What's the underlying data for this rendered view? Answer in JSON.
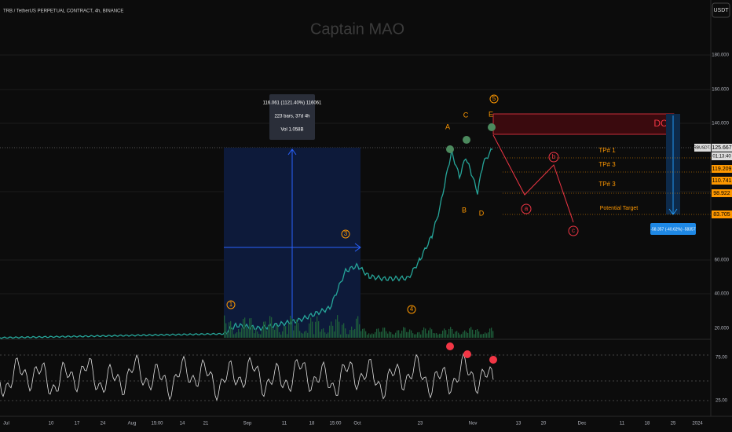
{
  "header": {
    "symbol": "TRB / TetherUS PERPETUAL CONTRACT, 4h, BINANCE",
    "watermark": "Captain MAO",
    "currency": "USDT"
  },
  "price_axis": {
    "labels": [
      "180.000",
      "160.000",
      "140.000",
      "60.000",
      "40.000",
      "20.000"
    ],
    "rsi_labels": [
      "75.00",
      "25.00"
    ]
  },
  "price_tags": {
    "symbol": "TRBUSDT.P",
    "last": "125.667",
    "countdown": "01:13:40",
    "levels": [
      "119.209",
      "110.741",
      "98.922",
      "83.705"
    ]
  },
  "measure": {
    "lines": [
      "116.061 (1121.40%) 116061",
      "223 bars, 37d 4h",
      "Vol 1.058B"
    ],
    "short": "-58.357 (-40.62%) -58357"
  },
  "waves": {
    "impulse": [
      "1",
      "3",
      "4",
      "5"
    ],
    "letters": [
      "A",
      "B",
      "C",
      "D",
      "E"
    ],
    "correction": [
      "a",
      "b",
      "c"
    ]
  },
  "annotations": {
    "zone": "DCA",
    "targets": [
      "TP# 1",
      "TP# 3",
      "TP# 3"
    ],
    "potential": "Potential Target"
  },
  "time_axis": [
    "Jul",
    "10",
    "17",
    "24",
    "Aug",
    "15:00",
    "14",
    "21",
    "Sep",
    "11",
    "18",
    "15:00",
    "Oct",
    "23",
    "Nov",
    "13",
    "20",
    "Dec",
    "11",
    "18",
    "25",
    "2024"
  ]
}
